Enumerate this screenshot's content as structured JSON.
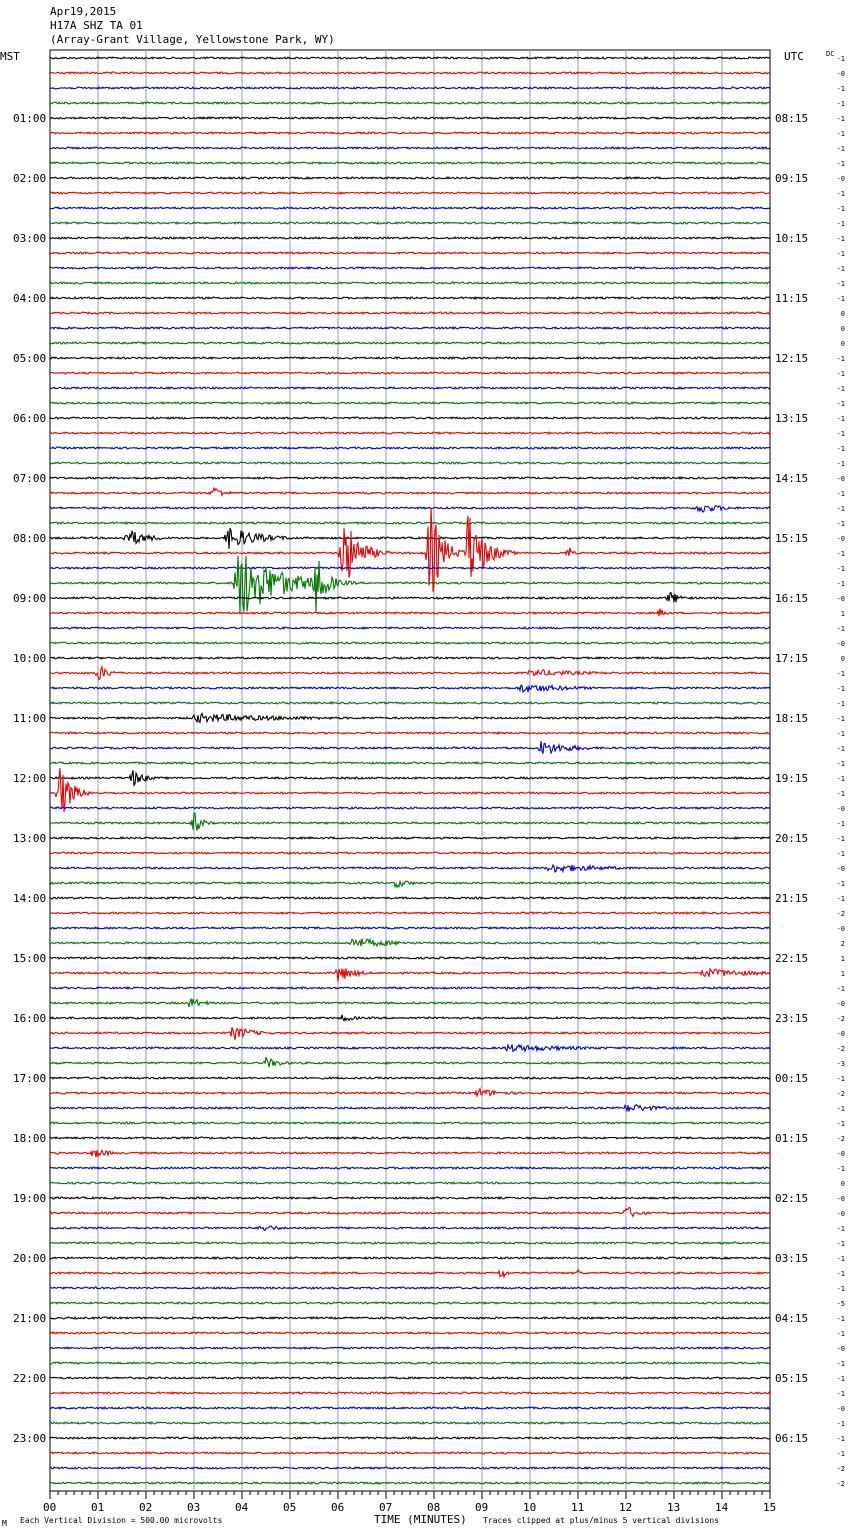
{
  "header": {
    "date": "Apr19,2015",
    "station": "H17A SHZ TA 01",
    "location": "(Array-Grant Village, Yellowstone Park, WY)"
  },
  "labels": {
    "left_zone": "MST",
    "right_zone": "UTC",
    "dc": "DC",
    "xlabel": "TIME (MINUTES)",
    "scale_note": "Each Vertical Division =  500.00 microvolts",
    "clip_note": "Traces clipped at plus/minus 5 vertical divisions",
    "logo": "M"
  },
  "chart_data": {
    "type": "line",
    "x_ticks": [
      "00",
      "01",
      "02",
      "03",
      "04",
      "05",
      "06",
      "07",
      "08",
      "09",
      "10",
      "11",
      "12",
      "13",
      "14",
      "15"
    ],
    "xlim": [
      0,
      15
    ],
    "grid": true,
    "trace_colors": [
      "#000000",
      "#ee0000",
      "#0000cc",
      "#007700"
    ],
    "rows": 96,
    "left_hour_labels": [
      "01:00",
      "02:00",
      "03:00",
      "04:00",
      "05:00",
      "06:00",
      "07:00",
      "08:00",
      "09:00",
      "10:00",
      "11:00",
      "12:00",
      "13:00",
      "14:00",
      "15:00",
      "16:00",
      "17:00",
      "18:00",
      "19:00",
      "20:00",
      "21:00",
      "22:00",
      "23:00"
    ],
    "right_hour_labels": [
      "08:15",
      "09:15",
      "10:15",
      "11:15",
      "12:15",
      "13:15",
      "14:15",
      "15:15",
      "16:15",
      "17:15",
      "18:15",
      "19:15",
      "20:15",
      "21:15",
      "22:15",
      "23:15",
      "00:15",
      "01:15",
      "02:15",
      "03:15",
      "04:15",
      "05:15",
      "06:15"
    ],
    "dc_offsets": [
      "-1",
      "-0",
      "-1",
      "-1",
      "-1",
      "-1",
      "-1",
      "-1",
      "-0",
      "-1",
      "-1",
      "-1",
      "-1",
      "-1",
      "-1",
      "-1",
      "-1",
      "0",
      "0",
      "0",
      "-1",
      "-1",
      "-1",
      "-1",
      "-1",
      "-1",
      "-1",
      "-1",
      "-0",
      "-1",
      "-1",
      "-1",
      "-0",
      "-1",
      "-1",
      "-1",
      "-0",
      "1",
      "-1",
      "-0",
      "0",
      "-1",
      "-1",
      "-1",
      "-1",
      "-1",
      "-1",
      "-1",
      "-1",
      "-1",
      "-0",
      "-1",
      "-1",
      "-1",
      "-0",
      "-1",
      "-1",
      "-2",
      "-0",
      "2",
      "1",
      "1",
      "-1",
      "-0",
      "-2",
      "-0",
      "-2",
      "-3",
      "-1",
      "-2",
      "-1",
      "-1",
      "-2",
      "-0",
      "-1",
      "0",
      "-0",
      "-0",
      "-1",
      "-1",
      "-1",
      "-1",
      "-1",
      "-5",
      "-1",
      "-1",
      "-0",
      "-1",
      "-1",
      "-1",
      "-0",
      "-1",
      "-1",
      "-1",
      "-2",
      "-2"
    ],
    "events": [
      {
        "row": 29,
        "minute": 3.4,
        "amp": 8,
        "width": 0.25
      },
      {
        "row": 30,
        "minute": 13.5,
        "amp": 6,
        "width": 0.6
      },
      {
        "row": 32,
        "minute": 1.6,
        "amp": 10,
        "width": 0.5
      },
      {
        "row": 32,
        "minute": 3.7,
        "amp": 12,
        "width": 0.8
      },
      {
        "row": 33,
        "minute": 6.1,
        "amp": 40,
        "width": 0.4
      },
      {
        "row": 33,
        "minute": 7.9,
        "amp": 55,
        "width": 0.3
      },
      {
        "row": 33,
        "minute": 8.7,
        "amp": 45,
        "width": 0.4
      },
      {
        "row": 33,
        "minute": 10.8,
        "amp": 9,
        "width": 0.1
      },
      {
        "row": 35,
        "minute": 3.9,
        "amp": 40,
        "width": 1.0
      },
      {
        "row": 35,
        "minute": 5.5,
        "amp": 35,
        "width": 0.3
      },
      {
        "row": 36,
        "minute": 12.9,
        "amp": 8,
        "width": 0.3
      },
      {
        "row": 37,
        "minute": 12.7,
        "amp": 5,
        "width": 0.2
      },
      {
        "row": 41,
        "minute": 1.0,
        "amp": 9,
        "width": 0.3
      },
      {
        "row": 41,
        "minute": 10.0,
        "amp": 4,
        "width": 1.5
      },
      {
        "row": 42,
        "minute": 9.8,
        "amp": 5,
        "width": 1.3
      },
      {
        "row": 44,
        "minute": 3.0,
        "amp": 5,
        "width": 2.5
      },
      {
        "row": 46,
        "minute": 10.2,
        "amp": 8,
        "width": 0.8
      },
      {
        "row": 48,
        "minute": 1.7,
        "amp": 10,
        "width": 0.3
      },
      {
        "row": 49,
        "minute": 0.2,
        "amp": 30,
        "width": 0.3
      },
      {
        "row": 51,
        "minute": 3.0,
        "amp": 12,
        "width": 0.2
      },
      {
        "row": 54,
        "minute": 10.4,
        "amp": 5,
        "width": 1.4
      },
      {
        "row": 55,
        "minute": 7.2,
        "amp": 5,
        "width": 0.4
      },
      {
        "row": 59,
        "minute": 6.3,
        "amp": 6,
        "width": 1.0
      },
      {
        "row": 61,
        "minute": 6.0,
        "amp": 10,
        "width": 0.4
      },
      {
        "row": 61,
        "minute": 13.6,
        "amp": 5,
        "width": 1.5
      },
      {
        "row": 63,
        "minute": 2.9,
        "amp": 6,
        "width": 0.4
      },
      {
        "row": 64,
        "minute": 6.1,
        "amp": 5,
        "width": 0.3
      },
      {
        "row": 65,
        "minute": 3.8,
        "amp": 8,
        "width": 0.5
      },
      {
        "row": 66,
        "minute": 9.5,
        "amp": 4,
        "width": 2.0
      },
      {
        "row": 67,
        "minute": 4.5,
        "amp": 6,
        "width": 0.4
      },
      {
        "row": 69,
        "minute": 8.9,
        "amp": 5,
        "width": 0.7
      },
      {
        "row": 70,
        "minute": 12.0,
        "amp": 5,
        "width": 0.8
      },
      {
        "row": 73,
        "minute": 0.9,
        "amp": 6,
        "width": 0.4
      },
      {
        "row": 77,
        "minute": 12.0,
        "amp": 8,
        "width": 0.3
      },
      {
        "row": 78,
        "minute": 4.4,
        "amp": 5,
        "width": 0.4
      },
      {
        "row": 81,
        "minute": 9.4,
        "amp": 10,
        "width": 0.1
      },
      {
        "row": 81,
        "minute": 11.0,
        "amp": 4,
        "width": 0.1
      }
    ]
  }
}
